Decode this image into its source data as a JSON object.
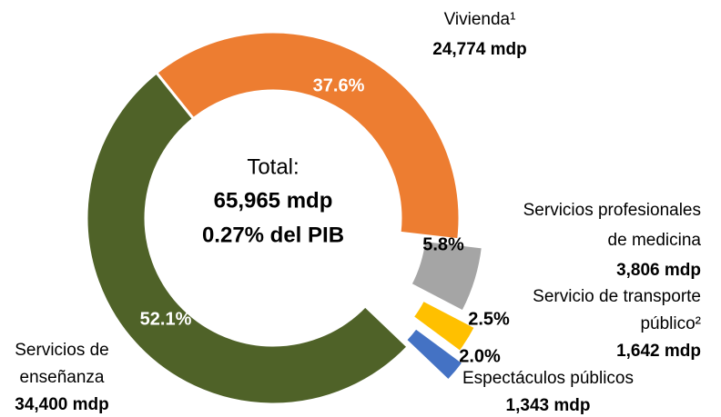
{
  "chart_data": {
    "type": "donut",
    "categories": [
      [
        "Vivienda¹"
      ],
      [
        "Servicios profesionales",
        "de medicina"
      ],
      [
        "Servicio de transporte",
        "público²"
      ],
      [
        "Espectáculos públicos"
      ],
      [
        "Servicios de",
        "enseñanza"
      ]
    ],
    "values": [
      37.6,
      5.8,
      2.5,
      2.0,
      52.1
    ],
    "value_labels": [
      "37.6%",
      "5.8%",
      "2.5%",
      "2.0%",
      "52.1%"
    ],
    "amounts": [
      "24,774 mdp",
      "3,806 mdp",
      "1,642 mdp",
      "1,343 mdp",
      "34,400 mdp"
    ],
    "colors": [
      "#ed7d31",
      "#a5a5a5",
      "#ffc000",
      "#4472c4",
      "#4f6228"
    ],
    "center_text": [
      "Total:",
      "65,965 mdp",
      "0.27% del PIB"
    ]
  }
}
